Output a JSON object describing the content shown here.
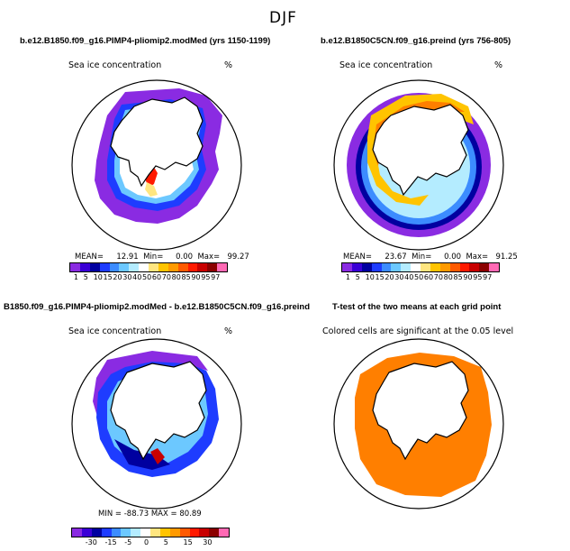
{
  "figure_title": "DJF",
  "panels": {
    "top_left": {
      "title": "b.e12.B1850.f09_g16.PIMP4-pliomip2.modMed (yrs 1150-1199)",
      "variable": "Sea ice concentration",
      "units": "%",
      "stats": {
        "mean_label": "MEAN=",
        "mean": "12.91",
        "min_label": "Min=",
        "min": "0.00",
        "max_label": "Max=",
        "max": "99.27"
      }
    },
    "top_right": {
      "title": "b.e12.B1850C5CN.f09_g16.preind (yrs 756-805)",
      "variable": "Sea ice concentration",
      "units": "%",
      "stats": {
        "mean_label": "MEAN=",
        "mean": "23.67",
        "min_label": "Min=",
        "min": "0.00",
        "max_label": "Max=",
        "max": "91.25"
      }
    },
    "bottom_left": {
      "title": "B1850.f09_g16.PIMP4-pliomip2.modMed - b.e12.B1850C5CN.f09_g16.preind",
      "variable": "Sea ice concentration",
      "units": "%",
      "stats": {
        "text": "MIN = -88.73  MAX =  80.89"
      }
    },
    "bottom_right": {
      "title": "T-test of the two means at each grid point",
      "note": "Colored cells are significant at the 0.05 level"
    }
  },
  "colorbars": {
    "abs": {
      "colors": [
        "#8a2be2",
        "#3a00d6",
        "#0000a0",
        "#1e3cff",
        "#3c8cff",
        "#6cc8ff",
        "#b4ecff",
        "#ffffff",
        "#ffe680",
        "#ffc400",
        "#ff9a00",
        "#ff5a00",
        "#ff1a00",
        "#c80000",
        "#8b0000",
        "#ff69b4"
      ],
      "labels": [
        "1",
        "5",
        "10",
        "15",
        "20",
        "30",
        "40",
        "50",
        "60",
        "70",
        "80",
        "85",
        "90",
        "95",
        "97"
      ]
    },
    "diff": {
      "colors": [
        "#8a2be2",
        "#3a00d6",
        "#0000a0",
        "#1e3cff",
        "#3c8cff",
        "#6cc8ff",
        "#b4ecff",
        "#ffffff",
        "#ffe680",
        "#ffc400",
        "#ff9a00",
        "#ff5a00",
        "#ff1a00",
        "#c80000",
        "#8b0000",
        "#ff69b4"
      ],
      "labels": [
        "-30",
        "-15",
        "-5",
        "0",
        "5",
        "15",
        "30"
      ]
    }
  },
  "colors": {
    "ttest": "#ff7f00",
    "ice_purple": "#8a2be2",
    "ice_blue": "#1e3cff",
    "land": "#ffffff"
  }
}
